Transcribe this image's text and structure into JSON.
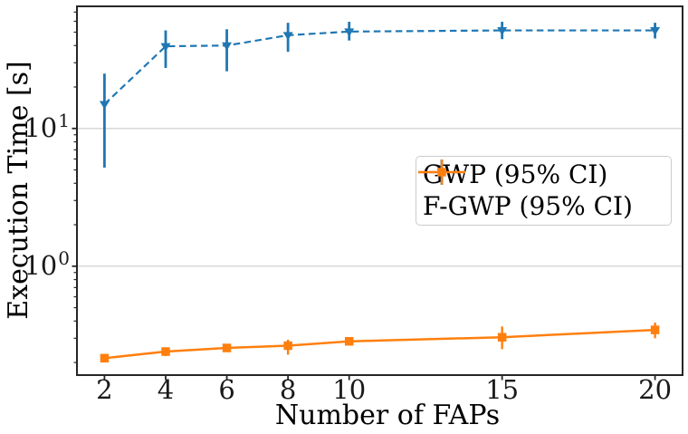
{
  "figure": {
    "background": "#ffffff",
    "text_color": "#000000",
    "spine_color": "#262626",
    "grid_color": "#cccccc"
  },
  "chart_data": {
    "type": "line",
    "title": "",
    "xlabel": "Number of FAPs",
    "ylabel": "Execution Time [s]",
    "x_scale": "linear",
    "y_scale": "log",
    "xlim": [
      1.1,
      20.9
    ],
    "ylim": [
      0.162,
      77
    ],
    "x_ticks": [
      2,
      4,
      6,
      8,
      10,
      15,
      20
    ],
    "x_tick_labels": [
      "2",
      "4",
      "6",
      "8",
      "10",
      "15",
      "20"
    ],
    "y_major_ticks": [
      {
        "value": 10,
        "base": "10",
        "exponent": "1"
      },
      {
        "value": 1,
        "base": "10",
        "exponent": "0"
      }
    ],
    "grid": "horizontal-major-only",
    "legend": {
      "position": "center-right"
    },
    "series": [
      {
        "name": "GWP (95% CI)",
        "color": "#1f77b4",
        "line_style": "dashed",
        "marker": "triangle-down",
        "x": [
          2,
          4,
          6,
          8,
          10,
          15,
          20
        ],
        "y": [
          15,
          39.5,
          40,
          47.5,
          50.5,
          51.5,
          51.5
        ],
        "ci_low": [
          5.2,
          27.5,
          26,
          36,
          43.5,
          44.5,
          45
        ],
        "ci_high": [
          25,
          51.5,
          52.5,
          58.5,
          59.5,
          59.5,
          58.5
        ]
      },
      {
        "name": "F-GWP (95% CI)",
        "color": "#ff7f0e",
        "line_style": "solid",
        "marker": "square",
        "x": [
          2,
          4,
          6,
          8,
          10,
          15,
          20
        ],
        "y": [
          0.215,
          0.24,
          0.255,
          0.265,
          0.285,
          0.305,
          0.345
        ],
        "ci_low": [
          0.21,
          0.223,
          0.247,
          0.228,
          0.277,
          0.25,
          0.3
        ],
        "ci_high": [
          0.22,
          0.258,
          0.263,
          0.293,
          0.293,
          0.365,
          0.39
        ]
      }
    ]
  }
}
